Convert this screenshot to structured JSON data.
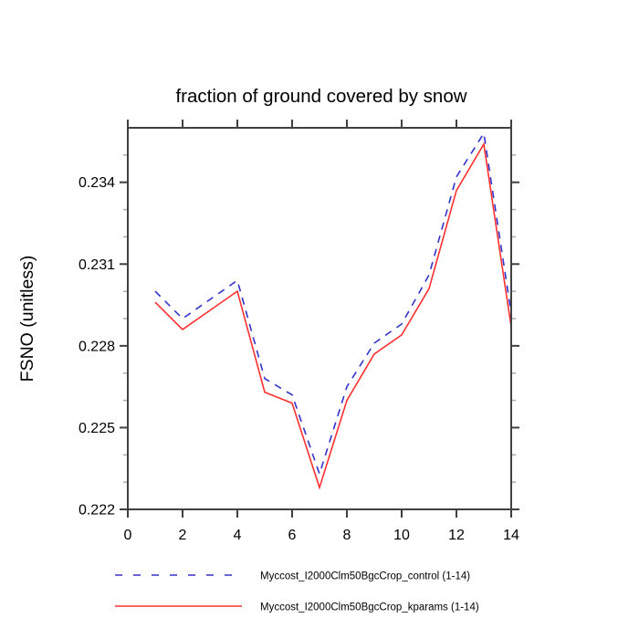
{
  "title": "fraction of ground covered by snow",
  "y_axis": {
    "label": "FSNO  (unitless)",
    "min": 0.222,
    "max": 0.236,
    "major_ticks": [
      0.222,
      0.225,
      0.228,
      0.231,
      0.234
    ],
    "major_tick_labels": [
      "0.222",
      "0.225",
      "0.228",
      "0.231",
      "0.234"
    ],
    "minor_ticks": [
      0.223,
      0.224,
      0.226,
      0.227,
      0.229,
      0.23,
      0.232,
      0.233,
      0.235
    ]
  },
  "x_axis": {
    "label": "",
    "min": 0,
    "max": 14,
    "major_ticks": [
      0,
      2,
      4,
      6,
      8,
      10,
      12,
      14
    ],
    "major_tick_labels": [
      "0",
      "2",
      "4",
      "6",
      "8",
      "10",
      "12",
      "14"
    ]
  },
  "chart_data": {
    "type": "line",
    "title": "fraction of ground covered by snow",
    "xlabel": "",
    "ylabel": "FSNO  (unitless)",
    "xlim": [
      0,
      14
    ],
    "ylim": [
      0.222,
      0.236
    ],
    "grid": false,
    "legend_position": "bottom",
    "x": [
      1,
      2,
      3,
      4,
      5,
      6,
      7,
      8,
      9,
      10,
      11,
      12,
      13,
      14
    ],
    "series": [
      {
        "name": "Myccost_I2000Clm50BgcCrop_control (1-14)",
        "style": "dashed",
        "color": "#3333cc",
        "values": [
          0.23,
          0.229,
          0.2297,
          0.2304,
          0.2268,
          0.2262,
          0.2233,
          0.2265,
          0.2281,
          0.2288,
          0.2306,
          0.2342,
          0.2358,
          0.2292
        ]
      },
      {
        "name": "Myccost_I2000Clm50BgcCrop_kparams (1-14)",
        "style": "solid",
        "color": "#ff3030",
        "values": [
          0.2296,
          0.2286,
          0.2293,
          0.23,
          0.2263,
          0.2259,
          0.2228,
          0.226,
          0.2277,
          0.2284,
          0.2301,
          0.2337,
          0.2354,
          0.2287
        ]
      }
    ]
  },
  "legend": {
    "items": [
      {
        "label": "Myccost_I2000Clm50BgcCrop_control (1-14)",
        "color": "#3333cc",
        "style": "dashed"
      },
      {
        "label": "Myccost_I2000Clm50BgcCrop_kparams (1-14)",
        "color": "#ff3030",
        "style": "solid"
      }
    ]
  },
  "colors": {
    "background": "#ffffff",
    "axis": "#404040",
    "minor_tick": "#ababab",
    "text": "#000000",
    "series_control": "#3333cc",
    "series_kparams": "#ff3030"
  }
}
